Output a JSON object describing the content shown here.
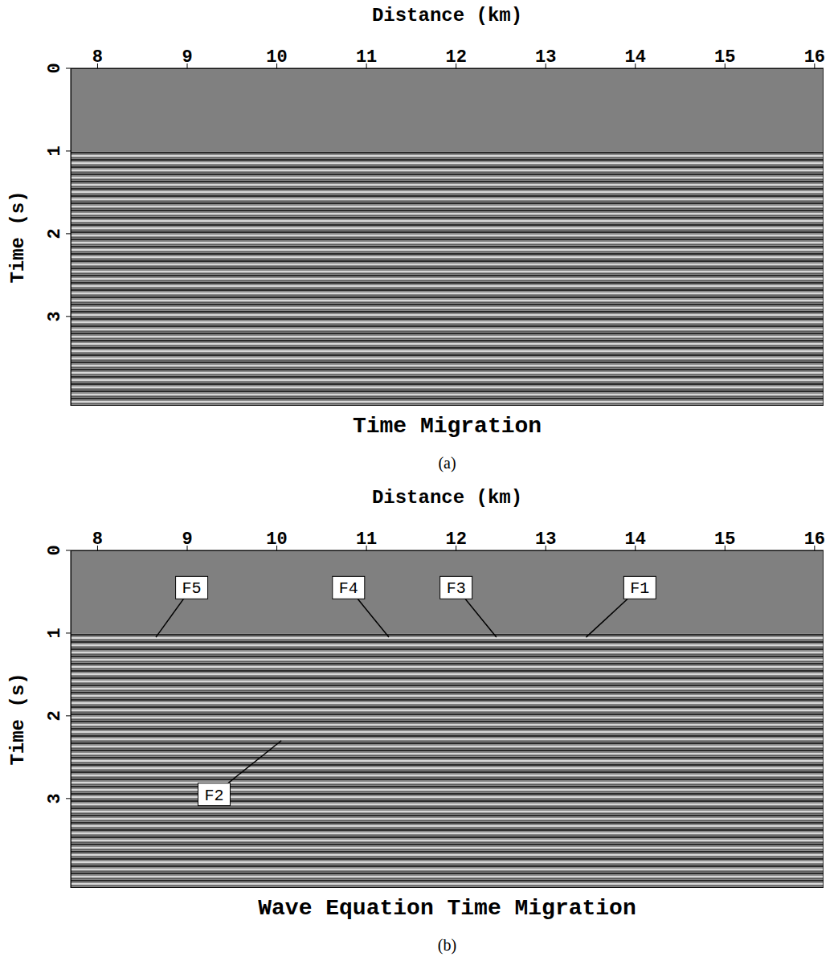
{
  "chart_data": [
    {
      "type": "image",
      "title": "Time Migration",
      "caption": "(a)",
      "x_label": "Distance (km)",
      "y_label": "Time (s)",
      "xlim": [
        7.7,
        16.1
      ],
      "xticks": [
        8,
        9,
        10,
        11,
        12,
        13,
        14,
        15,
        16
      ],
      "ylim": [
        0,
        4.08
      ],
      "yticks": [
        0,
        1,
        2,
        3
      ],
      "water_bottom_time": 1.0,
      "grid": false,
      "annotations": []
    },
    {
      "type": "image",
      "title": "Wave Equation Time Migration",
      "caption": "(b)",
      "x_label": "Distance (km)",
      "y_label": "Time (s)",
      "xlim": [
        7.7,
        16.1
      ],
      "xticks": [
        8,
        9,
        10,
        11,
        12,
        13,
        14,
        15,
        16
      ],
      "ylim": [
        0,
        4.08
      ],
      "yticks": [
        0,
        1,
        2,
        3
      ],
      "water_bottom_time": 1.0,
      "grid": false,
      "annotations": [
        {
          "text": "F5",
          "x": 9.05,
          "y": 0.45,
          "point_x": 8.65,
          "point_y": 1.05
        },
        {
          "text": "F4",
          "x": 10.8,
          "y": 0.45,
          "point_x": 11.25,
          "point_y": 1.05
        },
        {
          "text": "F3",
          "x": 12.0,
          "y": 0.45,
          "point_x": 12.45,
          "point_y": 1.05
        },
        {
          "text": "F1",
          "x": 14.05,
          "y": 0.45,
          "point_x": 13.45,
          "point_y": 1.05
        },
        {
          "text": "F2",
          "x": 9.3,
          "y": 2.95,
          "point_x": 10.05,
          "point_y": 2.3
        }
      ]
    }
  ]
}
